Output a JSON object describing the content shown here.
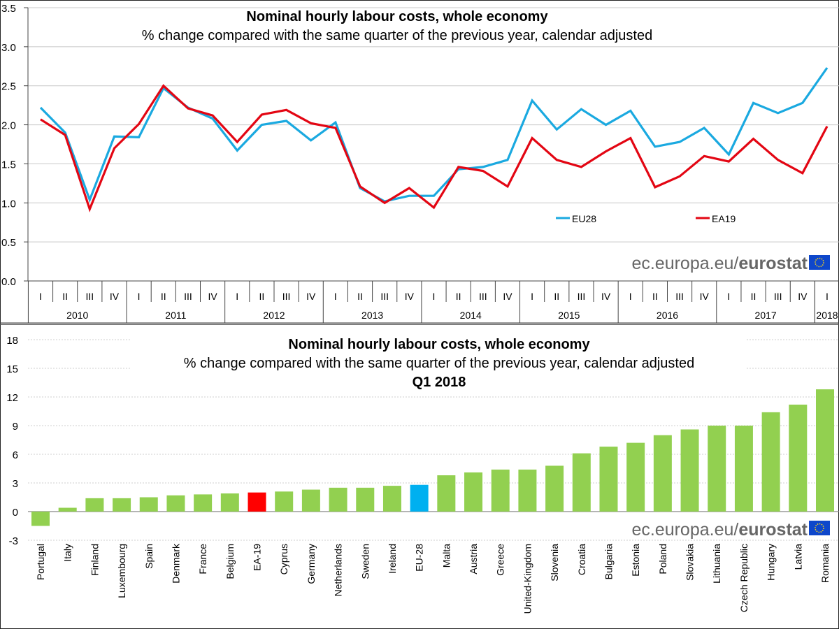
{
  "chart_data": [
    {
      "type": "line",
      "title": "Nominal hourly labour costs, whole economy",
      "subtitle": "% change compared with the same quarter of the previous year, calendar adjusted",
      "xlabel": "",
      "ylabel": "",
      "ylim": [
        0,
        3.5
      ],
      "yticks": [
        "0.0",
        "0.5",
        "1.0",
        "1.5",
        "2.0",
        "2.5",
        "3.0",
        "3.5"
      ],
      "ytick_values": [
        0,
        0.5,
        1.0,
        1.5,
        2.0,
        2.5,
        3.0,
        3.5
      ],
      "grid": true,
      "legend_position": "bottom-right",
      "quarters": [
        "I",
        "II",
        "III",
        "IV",
        "I",
        "II",
        "III",
        "IV",
        "I",
        "II",
        "III",
        "IV",
        "I",
        "II",
        "III",
        "IV",
        "I",
        "II",
        "III",
        "IV",
        "I",
        "II",
        "III",
        "IV",
        "I",
        "II",
        "III",
        "IV",
        "I",
        "II",
        "III",
        "IV",
        "I"
      ],
      "years": [
        "2010",
        "2011",
        "2012",
        "2013",
        "2014",
        "2015",
        "2016",
        "2017",
        "2018"
      ],
      "series": [
        {
          "name": "EU28",
          "color": "#1AA9E0",
          "values": [
            2.22,
            1.9,
            1.04,
            1.85,
            1.84,
            2.47,
            2.22,
            2.08,
            1.67,
            2.0,
            2.05,
            1.8,
            2.03,
            1.19,
            1.02,
            1.09,
            1.09,
            1.43,
            1.46,
            1.55,
            2.31,
            1.94,
            2.2,
            2.0,
            2.18,
            1.72,
            1.78,
            1.96,
            1.62,
            2.28,
            2.15,
            2.28,
            2.73
          ]
        },
        {
          "name": "EA19",
          "color": "#E30613",
          "values": [
            2.07,
            1.87,
            0.92,
            1.7,
            2.01,
            2.5,
            2.21,
            2.12,
            1.78,
            2.13,
            2.19,
            2.02,
            1.96,
            1.21,
            1.0,
            1.19,
            0.94,
            1.46,
            1.41,
            1.21,
            1.83,
            1.55,
            1.46,
            1.66,
            1.83,
            1.2,
            1.34,
            1.6,
            1.53,
            1.82,
            1.55,
            1.38,
            1.98
          ]
        }
      ],
      "source": {
        "prefix": "ec.europa.eu/",
        "brand": "eurostat"
      }
    },
    {
      "type": "bar",
      "title": "Nominal hourly labour costs, whole economy",
      "subtitle": "% change compared with the same quarter of the previous year, calendar adjusted",
      "period": "Q1 2018",
      "xlabel": "",
      "ylabel": "",
      "ylim": [
        -3,
        18
      ],
      "yticks": [
        "-3",
        "0",
        "3",
        "6",
        "9",
        "12",
        "15",
        "18"
      ],
      "ytick_values": [
        -3,
        0,
        3,
        6,
        9,
        12,
        15,
        18
      ],
      "grid": true,
      "categories": [
        "Portugal",
        "Italy",
        "Finland",
        "Luxembourg",
        "Spain",
        "Denmark",
        "France",
        "Belgium",
        "EA-19",
        "Cyprus",
        "Germany",
        "Netherlands",
        "Sweden",
        "Ireland",
        "EU-28",
        "Malta",
        "Austria",
        "Greece",
        "United-Kingdom",
        "Slovenia",
        "Croatia",
        "Bulgaria",
        "Estonia",
        "Poland",
        "Slovakia",
        "Lithuania",
        "Czech Republic",
        "Hungary",
        "Latvia",
        "Romania"
      ],
      "values": [
        -1.5,
        0.4,
        1.4,
        1.4,
        1.5,
        1.7,
        1.8,
        1.9,
        2.0,
        2.1,
        2.3,
        2.5,
        2.5,
        2.7,
        2.8,
        3.8,
        4.1,
        4.4,
        4.4,
        4.8,
        6.1,
        6.8,
        7.2,
        8.0,
        8.6,
        9.0,
        9.0,
        10.4,
        11.2,
        12.8
      ],
      "colors": {
        "default": "#92D050",
        "EA-19": "#FF0000",
        "EU-28": "#00B0F0"
      },
      "source": {
        "prefix": "ec.europa.eu/",
        "brand": "eurostat"
      }
    }
  ]
}
